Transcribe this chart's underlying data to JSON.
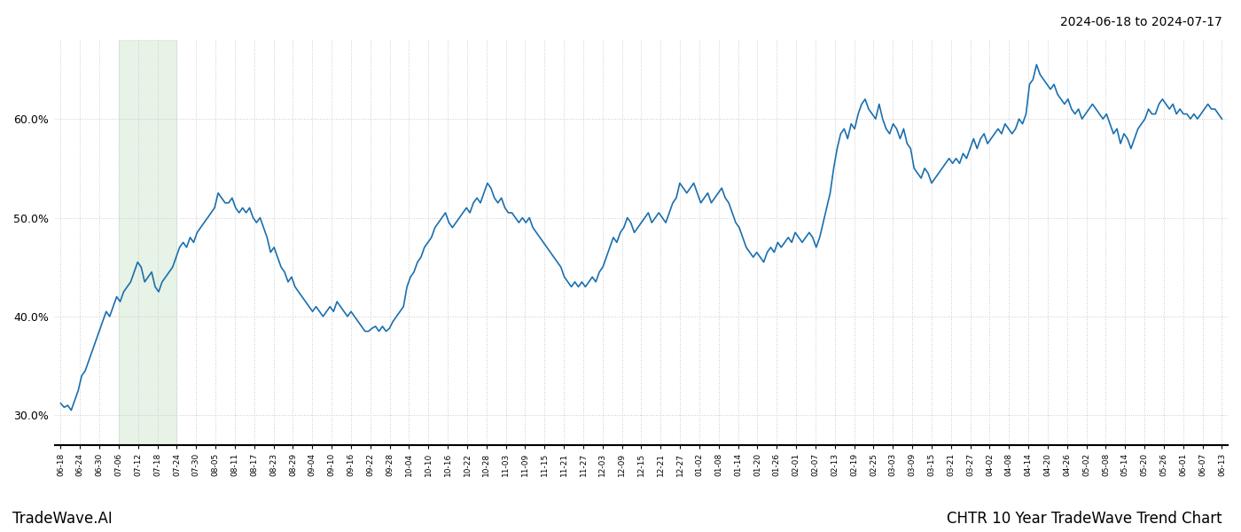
{
  "title_top_right": "2024-06-18 to 2024-07-17",
  "title_bottom_right": "CHTR 10 Year TradeWave Trend Chart",
  "title_bottom_left": "TradeWave.AI",
  "line_color": "#1a6faf",
  "line_width": 1.2,
  "background_color": "#ffffff",
  "grid_color": "#cccccc",
  "shading_color": "#c8e6c8",
  "shading_alpha": 0.45,
  "ylim": [
    27.0,
    68.0
  ],
  "yticks": [
    30.0,
    40.0,
    50.0,
    60.0
  ],
  "x_labels": [
    "06-18",
    "06-24",
    "06-30",
    "07-06",
    "07-12",
    "07-18",
    "07-24",
    "07-30",
    "08-05",
    "08-11",
    "08-17",
    "08-23",
    "08-29",
    "09-04",
    "09-10",
    "09-16",
    "09-22",
    "09-28",
    "10-04",
    "10-10",
    "10-16",
    "10-22",
    "10-28",
    "11-03",
    "11-09",
    "11-15",
    "11-21",
    "11-27",
    "12-03",
    "12-09",
    "12-15",
    "12-21",
    "12-27",
    "01-02",
    "01-08",
    "01-14",
    "01-20",
    "01-26",
    "02-01",
    "02-07",
    "02-13",
    "02-19",
    "02-25",
    "03-03",
    "03-09",
    "03-15",
    "03-21",
    "03-27",
    "04-02",
    "04-08",
    "04-14",
    "04-20",
    "04-26",
    "05-02",
    "05-08",
    "05-14",
    "05-20",
    "05-26",
    "06-01",
    "06-07",
    "06-13"
  ],
  "shading_start_label": "07-06",
  "shading_end_label": "07-18",
  "y_values": [
    31.2,
    30.8,
    31.0,
    30.5,
    31.5,
    32.5,
    34.0,
    34.5,
    35.5,
    36.5,
    37.5,
    38.5,
    39.5,
    40.5,
    40.0,
    41.0,
    42.0,
    41.5,
    42.5,
    43.0,
    43.5,
    44.5,
    45.5,
    45.0,
    43.5,
    44.0,
    44.5,
    43.0,
    42.5,
    43.5,
    44.0,
    44.5,
    45.0,
    46.0,
    47.0,
    47.5,
    47.0,
    48.0,
    47.5,
    48.5,
    49.0,
    49.5,
    50.0,
    50.5,
    51.0,
    52.5,
    52.0,
    51.5,
    51.5,
    52.0,
    51.0,
    50.5,
    51.0,
    50.5,
    51.0,
    50.0,
    49.5,
    50.0,
    49.0,
    48.0,
    46.5,
    47.0,
    46.0,
    45.0,
    44.5,
    43.5,
    44.0,
    43.0,
    42.5,
    42.0,
    41.5,
    41.0,
    40.5,
    41.0,
    40.5,
    40.0,
    40.5,
    41.0,
    40.5,
    41.5,
    41.0,
    40.5,
    40.0,
    40.5,
    40.0,
    39.5,
    39.0,
    38.5,
    38.5,
    38.8,
    39.0,
    38.5,
    39.0,
    38.5,
    38.8,
    39.5,
    40.0,
    40.5,
    41.0,
    43.0,
    44.0,
    44.5,
    45.5,
    46.0,
    47.0,
    47.5,
    48.0,
    49.0,
    49.5,
    50.0,
    50.5,
    49.5,
    49.0,
    49.5,
    50.0,
    50.5,
    51.0,
    50.5,
    51.5,
    52.0,
    51.5,
    52.5,
    53.5,
    53.0,
    52.0,
    51.5,
    52.0,
    51.0,
    50.5,
    50.5,
    50.0,
    49.5,
    50.0,
    49.5,
    50.0,
    49.0,
    48.5,
    48.0,
    47.5,
    47.0,
    46.5,
    46.0,
    45.5,
    45.0,
    44.0,
    43.5,
    43.0,
    43.5,
    43.0,
    43.5,
    43.0,
    43.5,
    44.0,
    43.5,
    44.5,
    45.0,
    46.0,
    47.0,
    48.0,
    47.5,
    48.5,
    49.0,
    50.0,
    49.5,
    48.5,
    49.0,
    49.5,
    50.0,
    50.5,
    49.5,
    50.0,
    50.5,
    50.0,
    49.5,
    50.5,
    51.5,
    52.0,
    53.5,
    53.0,
    52.5,
    53.0,
    53.5,
    52.5,
    51.5,
    52.0,
    52.5,
    51.5,
    52.0,
    52.5,
    53.0,
    52.0,
    51.5,
    50.5,
    49.5,
    49.0,
    48.0,
    47.0,
    46.5,
    46.0,
    46.5,
    46.0,
    45.5,
    46.5,
    47.0,
    46.5,
    47.5,
    47.0,
    47.5,
    48.0,
    47.5,
    48.5,
    48.0,
    47.5,
    48.0,
    48.5,
    48.0,
    47.0,
    48.0,
    49.5,
    51.0,
    52.5,
    55.0,
    57.0,
    58.5,
    59.0,
    58.0,
    59.5,
    59.0,
    60.5,
    61.5,
    62.0,
    61.0,
    60.5,
    60.0,
    61.5,
    60.0,
    59.0,
    58.5,
    59.5,
    59.0,
    58.0,
    59.0,
    57.5,
    57.0,
    55.0,
    54.5,
    54.0,
    55.0,
    54.5,
    53.5,
    54.0,
    54.5,
    55.0,
    55.5,
    56.0,
    55.5,
    56.0,
    55.5,
    56.5,
    56.0,
    57.0,
    58.0,
    57.0,
    58.0,
    58.5,
    57.5,
    58.0,
    58.5,
    59.0,
    58.5,
    59.5,
    59.0,
    58.5,
    59.0,
    60.0,
    59.5,
    60.5,
    63.5,
    64.0,
    65.5,
    64.5,
    64.0,
    63.5,
    63.0,
    63.5,
    62.5,
    62.0,
    61.5,
    62.0,
    61.0,
    60.5,
    61.0,
    60.0,
    60.5,
    61.0,
    61.5,
    61.0,
    60.5,
    60.0,
    60.5,
    59.5,
    58.5,
    59.0,
    57.5,
    58.5,
    58.0,
    57.0,
    58.0,
    59.0,
    59.5,
    60.0,
    61.0,
    60.5,
    60.5,
    61.5,
    62.0,
    61.5,
    61.0,
    61.5,
    60.5,
    61.0,
    60.5,
    60.5,
    60.0,
    60.5,
    60.0,
    60.5,
    61.0,
    61.5,
    61.0,
    61.0,
    60.5,
    60.0
  ]
}
